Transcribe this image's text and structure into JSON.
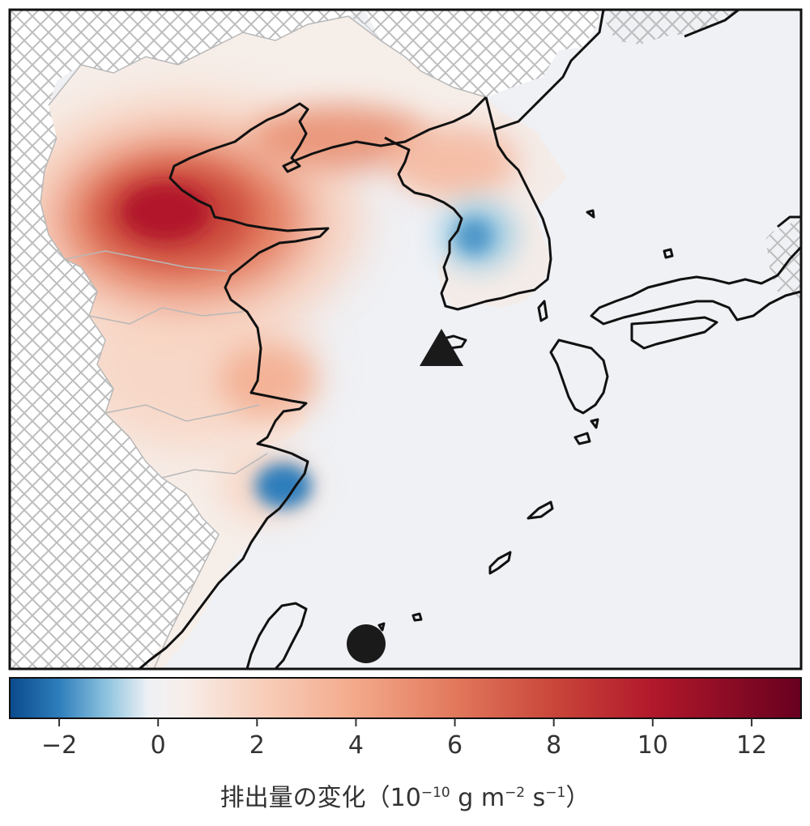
{
  "colorbar": {
    "min": -3,
    "max": 13,
    "ticks": [
      {
        "value": -2,
        "label": "−2"
      },
      {
        "value": 0,
        "label": "0"
      },
      {
        "value": 2,
        "label": "2"
      },
      {
        "value": 4,
        "label": "4"
      },
      {
        "value": 6,
        "label": "6"
      },
      {
        "value": 8,
        "label": "8"
      },
      {
        "value": 10,
        "label": "10"
      },
      {
        "value": 12,
        "label": "12"
      }
    ],
    "stops": [
      {
        "value": -3,
        "color": "#0a4a8c"
      },
      {
        "value": -2,
        "color": "#2e7ebc"
      },
      {
        "value": -1,
        "color": "#93c6e0"
      },
      {
        "value": -0.2,
        "color": "#eef1f5"
      },
      {
        "value": 0.5,
        "color": "#f7eeea"
      },
      {
        "value": 2,
        "color": "#f8d0bd"
      },
      {
        "value": 4,
        "color": "#f3a98a"
      },
      {
        "value": 6,
        "color": "#e2785c"
      },
      {
        "value": 8,
        "color": "#c9463a"
      },
      {
        "value": 10,
        "color": "#b2182b"
      },
      {
        "value": 13,
        "color": "#67001f"
      }
    ]
  },
  "legend": {
    "title_main": "排出量の変化（10",
    "exp1": "−10",
    "unit_g": " g m",
    "exp2": "−2",
    "unit_s": " s",
    "exp3": "−1",
    "title_end": "）"
  },
  "markers": [
    {
      "name": "observation-site-triangle-marker",
      "shape": "triangle"
    },
    {
      "name": "observation-site-circle-marker",
      "shape": "circle"
    }
  ],
  "colors": {
    "background": "#eff1f5",
    "coastline": "#111111",
    "hatch": "#bdbdbd",
    "province_border": "#b8b8b8",
    "marker": "#1a1a1a"
  }
}
